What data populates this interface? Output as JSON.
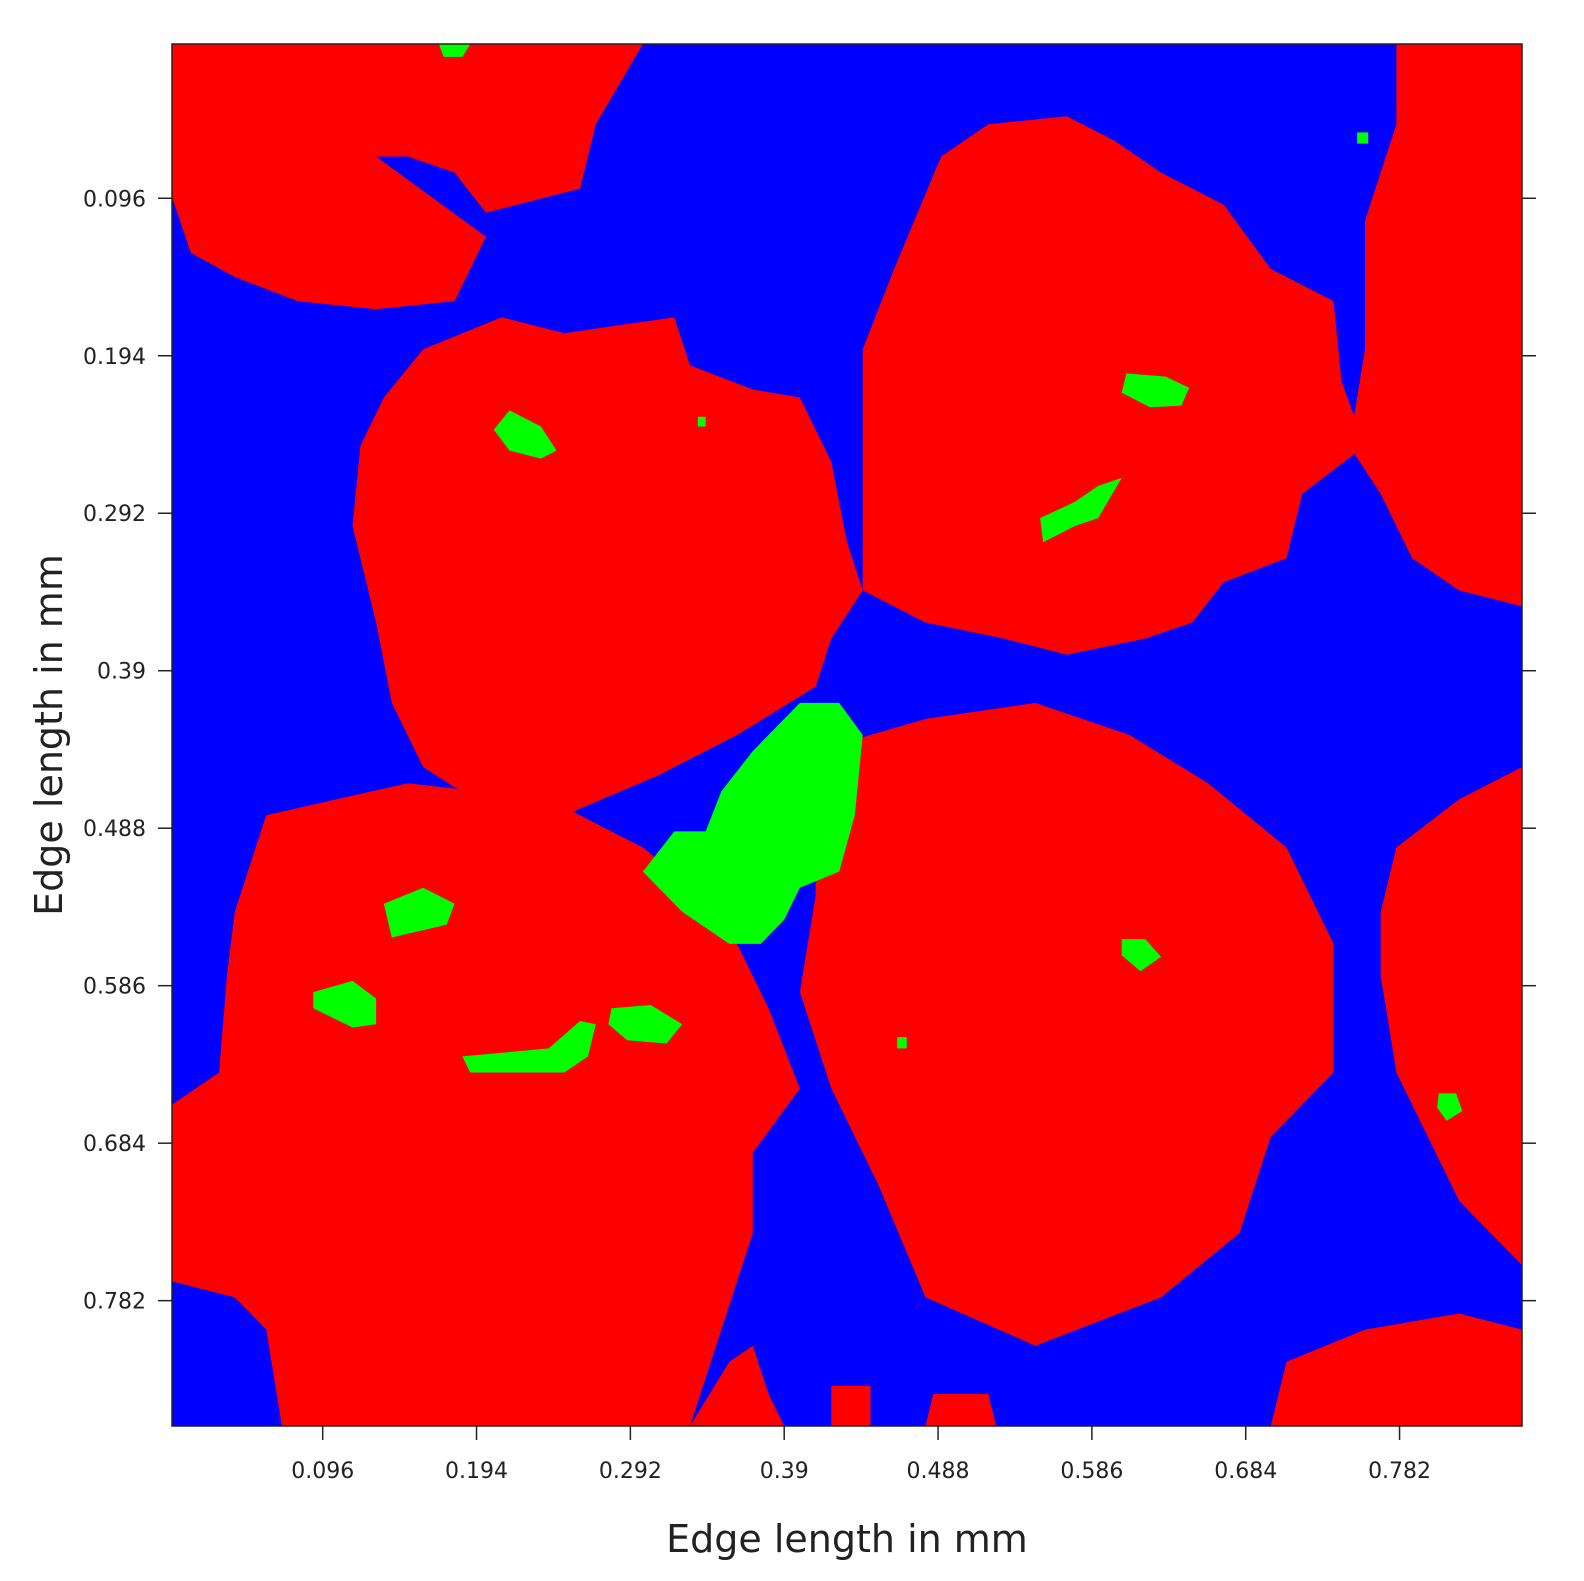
{
  "chart_data": {
    "type": "heatmap",
    "xlabel": "Edge length in mm",
    "ylabel": "Edge length in mm",
    "x_ticks": [
      "0.096",
      "0.194",
      "0.292",
      "0.39",
      "0.488",
      "0.586",
      "0.684",
      "0.782"
    ],
    "y_ticks": [
      "0.096",
      "0.194",
      "0.292",
      "0.39",
      "0.488",
      "0.586",
      "0.684",
      "0.782"
    ],
    "xlim": [
      0,
      0.86
    ],
    "ylim": [
      0,
      0.86
    ],
    "y_axis_direction": "top-to-bottom",
    "grid": false,
    "legend": "none",
    "colors": {
      "background_phase": "#0000ff",
      "grain_phase": "#ff0000",
      "inclusion_phase": "#00ff00"
    },
    "regions": {
      "red": [
        [
          [
            0,
            0
          ],
          [
            0.3,
            0
          ],
          [
            0.27,
            0.05
          ],
          [
            0.26,
            0.09
          ],
          [
            0.2,
            0.105
          ],
          [
            0.18,
            0.08
          ],
          [
            0.15,
            0.07
          ],
          [
            0.13,
            0.07
          ],
          [
            0.2,
            0.12
          ],
          [
            0.18,
            0.16
          ],
          [
            0.13,
            0.165
          ],
          [
            0.08,
            0.16
          ],
          [
            0.04,
            0.145
          ],
          [
            0.012,
            0.13
          ],
          [
            0,
            0.095
          ]
        ],
        [
          [
            0.16,
            0.19
          ],
          [
            0.21,
            0.17
          ],
          [
            0.25,
            0.18
          ],
          [
            0.32,
            0.17
          ],
          [
            0.33,
            0.2
          ],
          [
            0.37,
            0.215
          ],
          [
            0.4,
            0.22
          ],
          [
            0.42,
            0.26
          ],
          [
            0.43,
            0.31
          ],
          [
            0.44,
            0.34
          ],
          [
            0.42,
            0.37
          ],
          [
            0.41,
            0.4
          ],
          [
            0.36,
            0.43
          ],
          [
            0.31,
            0.455
          ],
          [
            0.25,
            0.48
          ],
          [
            0.2,
            0.475
          ],
          [
            0.16,
            0.45
          ],
          [
            0.14,
            0.41
          ],
          [
            0.13,
            0.36
          ],
          [
            0.115,
            0.3
          ],
          [
            0.12,
            0.25
          ],
          [
            0.135,
            0.22
          ]
        ],
        [
          [
            0.49,
            0.07
          ],
          [
            0.52,
            0.05
          ],
          [
            0.57,
            0.045
          ],
          [
            0.6,
            0.06
          ],
          [
            0.63,
            0.08
          ],
          [
            0.67,
            0.1
          ],
          [
            0.7,
            0.14
          ],
          [
            0.74,
            0.16
          ],
          [
            0.745,
            0.21
          ],
          [
            0.76,
            0.25
          ],
          [
            0.72,
            0.28
          ],
          [
            0.71,
            0.32
          ],
          [
            0.67,
            0.335
          ],
          [
            0.65,
            0.36
          ],
          [
            0.62,
            0.37
          ],
          [
            0.57,
            0.38
          ],
          [
            0.53,
            0.37
          ],
          [
            0.48,
            0.36
          ],
          [
            0.44,
            0.34
          ],
          [
            0.44,
            0.3
          ],
          [
            0.44,
            0.25
          ],
          [
            0.44,
            0.19
          ],
          [
            0.46,
            0.14
          ]
        ],
        [
          [
            0.78,
            0
          ],
          [
            0.86,
            0
          ],
          [
            0.86,
            0.35
          ],
          [
            0.82,
            0.34
          ],
          [
            0.79,
            0.32
          ],
          [
            0.77,
            0.28
          ],
          [
            0.75,
            0.25
          ],
          [
            0.76,
            0.19
          ],
          [
            0.76,
            0.11
          ],
          [
            0.78,
            0.05
          ]
        ],
        [
          [
            0.41,
            0.44
          ],
          [
            0.48,
            0.42
          ],
          [
            0.55,
            0.41
          ],
          [
            0.61,
            0.43
          ],
          [
            0.66,
            0.46
          ],
          [
            0.71,
            0.5
          ],
          [
            0.74,
            0.56
          ],
          [
            0.74,
            0.64
          ],
          [
            0.7,
            0.68
          ],
          [
            0.68,
            0.74
          ],
          [
            0.63,
            0.78
          ],
          [
            0.55,
            0.81
          ],
          [
            0.48,
            0.78
          ],
          [
            0.45,
            0.71
          ],
          [
            0.42,
            0.65
          ],
          [
            0.4,
            0.59
          ],
          [
            0.41,
            0.53
          ]
        ],
        [
          [
            0.06,
            0.48
          ],
          [
            0.15,
            0.46
          ],
          [
            0.24,
            0.47
          ],
          [
            0.3,
            0.5
          ],
          [
            0.35,
            0.54
          ],
          [
            0.38,
            0.6
          ],
          [
            0.4,
            0.65
          ],
          [
            0.37,
            0.69
          ],
          [
            0.37,
            0.74
          ],
          [
            0.35,
            0.8
          ],
          [
            0.33,
            0.86
          ],
          [
            0.07,
            0.86
          ],
          [
            0.06,
            0.8
          ],
          [
            0.04,
            0.78
          ],
          [
            0,
            0.77
          ],
          [
            0,
            0.66
          ],
          [
            0.03,
            0.64
          ],
          [
            0.035,
            0.58
          ],
          [
            0.04,
            0.54
          ]
        ],
        [
          [
            0.86,
            0.45
          ],
          [
            0.86,
            0.76
          ],
          [
            0.82,
            0.72
          ],
          [
            0.8,
            0.68
          ],
          [
            0.78,
            0.64
          ],
          [
            0.77,
            0.58
          ],
          [
            0.77,
            0.54
          ],
          [
            0.78,
            0.5
          ],
          [
            0.82,
            0.47
          ]
        ],
        [
          [
            0.7,
            0.86
          ],
          [
            0.71,
            0.82
          ],
          [
            0.76,
            0.8
          ],
          [
            0.82,
            0.79
          ],
          [
            0.86,
            0.8
          ],
          [
            0.86,
            0.86
          ]
        ],
        [
          [
            0.33,
            0.86
          ],
          [
            0.355,
            0.82
          ],
          [
            0.37,
            0.81
          ],
          [
            0.38,
            0.84
          ],
          [
            0.39,
            0.86
          ]
        ],
        [
          [
            0.42,
            0.86
          ],
          [
            0.42,
            0.835
          ],
          [
            0.445,
            0.835
          ],
          [
            0.445,
            0.86
          ]
        ],
        [
          [
            0.48,
            0.86
          ],
          [
            0.485,
            0.84
          ],
          [
            0.52,
            0.84
          ],
          [
            0.525,
            0.86
          ]
        ]
      ],
      "green": [
        [
          [
            0.4,
            0.41
          ],
          [
            0.425,
            0.41
          ],
          [
            0.44,
            0.43
          ],
          [
            0.435,
            0.48
          ],
          [
            0.425,
            0.515
          ],
          [
            0.4,
            0.525
          ],
          [
            0.39,
            0.545
          ],
          [
            0.375,
            0.56
          ],
          [
            0.355,
            0.56
          ],
          [
            0.325,
            0.54
          ],
          [
            0.3,
            0.515
          ],
          [
            0.32,
            0.49
          ],
          [
            0.34,
            0.49
          ],
          [
            0.35,
            0.465
          ],
          [
            0.37,
            0.44
          ]
        ],
        [
          [
            0.215,
            0.228
          ],
          [
            0.235,
            0.238
          ],
          [
            0.245,
            0.253
          ],
          [
            0.235,
            0.258
          ],
          [
            0.215,
            0.253
          ],
          [
            0.205,
            0.24
          ]
        ],
        [
          [
            0.608,
            0.205
          ],
          [
            0.633,
            0.207
          ],
          [
            0.648,
            0.214
          ],
          [
            0.643,
            0.225
          ],
          [
            0.623,
            0.226
          ],
          [
            0.605,
            0.217
          ]
        ],
        [
          [
            0.553,
            0.295
          ],
          [
            0.575,
            0.285
          ],
          [
            0.59,
            0.275
          ],
          [
            0.605,
            0.27
          ],
          [
            0.59,
            0.295
          ],
          [
            0.575,
            0.3
          ],
          [
            0.555,
            0.31
          ]
        ],
        [
          [
            0.135,
            0.535
          ],
          [
            0.16,
            0.525
          ],
          [
            0.18,
            0.535
          ],
          [
            0.175,
            0.548
          ],
          [
            0.14,
            0.556
          ]
        ],
        [
          [
            0.09,
            0.59
          ],
          [
            0.115,
            0.583
          ],
          [
            0.13,
            0.594
          ],
          [
            0.13,
            0.61
          ],
          [
            0.115,
            0.612
          ],
          [
            0.09,
            0.6
          ]
        ],
        [
          [
            0.185,
            0.63
          ],
          [
            0.24,
            0.625
          ],
          [
            0.26,
            0.608
          ],
          [
            0.27,
            0.61
          ],
          [
            0.265,
            0.63
          ],
          [
            0.25,
            0.64
          ],
          [
            0.2,
            0.64
          ],
          [
            0.19,
            0.64
          ]
        ],
        [
          [
            0.28,
            0.6
          ],
          [
            0.305,
            0.598
          ],
          [
            0.325,
            0.61
          ],
          [
            0.315,
            0.622
          ],
          [
            0.29,
            0.62
          ],
          [
            0.278,
            0.61
          ]
        ],
        [
          [
            0.605,
            0.557
          ],
          [
            0.62,
            0.557
          ],
          [
            0.63,
            0.568
          ],
          [
            0.617,
            0.577
          ],
          [
            0.605,
            0.567
          ]
        ],
        [
          [
            0.807,
            0.653
          ],
          [
            0.818,
            0.653
          ],
          [
            0.822,
            0.664
          ],
          [
            0.812,
            0.67
          ],
          [
            0.806,
            0.662
          ]
        ],
        [
          [
            0.17,
            0.0
          ],
          [
            0.19,
            0.0
          ],
          [
            0.185,
            0.008
          ],
          [
            0.173,
            0.008
          ]
        ],
        [
          [
            0.755,
            0.055
          ],
          [
            0.762,
            0.055
          ],
          [
            0.762,
            0.062
          ],
          [
            0.755,
            0.062
          ]
        ],
        [
          [
            0.335,
            0.232
          ],
          [
            0.34,
            0.232
          ],
          [
            0.34,
            0.238
          ],
          [
            0.335,
            0.238
          ]
        ],
        [
          [
            0.462,
            0.618
          ],
          [
            0.468,
            0.618
          ],
          [
            0.468,
            0.625
          ],
          [
            0.462,
            0.625
          ]
        ]
      ]
    }
  }
}
